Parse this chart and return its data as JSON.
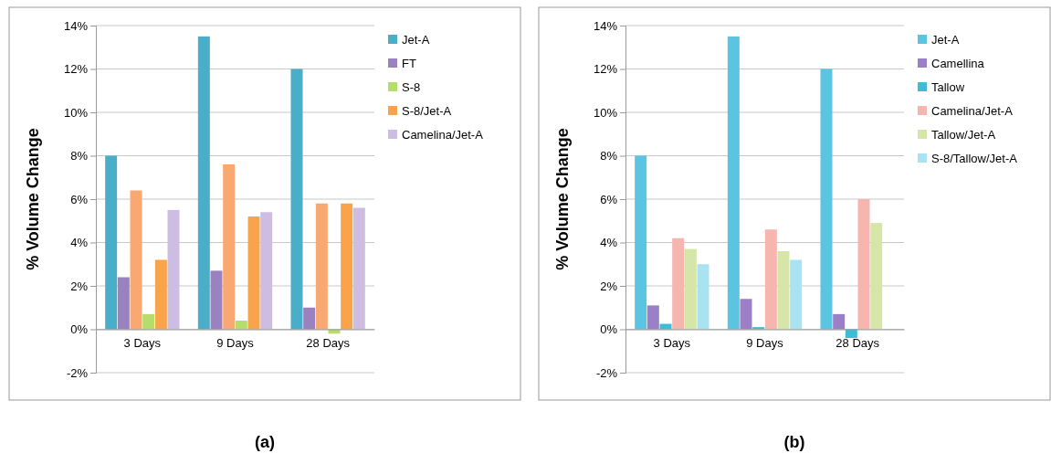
{
  "chart_data": [
    {
      "type": "bar",
      "ylabel": "% Volume Change",
      "annotations": [
        "(a)"
      ],
      "categories": [
        "3 Days",
        "9 Days",
        "28 Days"
      ],
      "ylim": [
        -2,
        14
      ],
      "yticks": [
        {
          "value": -2,
          "label": "-2%"
        },
        {
          "value": 0,
          "label": "0%"
        },
        {
          "value": 2,
          "label": "2%"
        },
        {
          "value": 4,
          "label": "4%"
        },
        {
          "value": 6,
          "label": "6%"
        },
        {
          "value": 8,
          "label": "8%"
        },
        {
          "value": 10,
          "label": "10%"
        },
        {
          "value": 12,
          "label": "12%"
        },
        {
          "value": 14,
          "label": "14%"
        }
      ],
      "grid": "y",
      "legend": "right",
      "series": [
        {
          "name": "Jet-A",
          "color": "#4aaec9",
          "values": [
            8.0,
            13.5,
            12.0
          ]
        },
        {
          "name": "FT",
          "color": "#9a82c0",
          "values": [
            2.4,
            2.7,
            1.0
          ]
        },
        {
          "color": "#f8a870",
          "values": [
            6.4,
            7.6,
            5.8
          ]
        },
        {
          "name": "S-8",
          "color": "#b5dd6b",
          "values": [
            0.7,
            0.4,
            -0.2
          ]
        },
        {
          "name": "S-8/Jet-A",
          "color": "#f9a34a",
          "values": [
            3.2,
            5.2,
            5.8
          ]
        },
        {
          "name": "Camelina/Jet-A",
          "color": "#cdbde3",
          "values": [
            5.5,
            5.4,
            5.6
          ]
        }
      ]
    },
    {
      "type": "bar",
      "ylabel": "% Volume Change",
      "annotations": [
        "(b)"
      ],
      "categories": [
        "3 Days",
        "9 Days",
        "28 Days"
      ],
      "ylim": [
        -2,
        14
      ],
      "yticks": [
        {
          "value": -2,
          "label": "-2%"
        },
        {
          "value": 0,
          "label": "0%"
        },
        {
          "value": 2,
          "label": "2%"
        },
        {
          "value": 4,
          "label": "4%"
        },
        {
          "value": 6,
          "label": "6%"
        },
        {
          "value": 8,
          "label": "8%"
        },
        {
          "value": 10,
          "label": "10%"
        },
        {
          "value": 12,
          "label": "12%"
        },
        {
          "value": 14,
          "label": "14%"
        }
      ],
      "grid": "y",
      "legend": "right",
      "series": [
        {
          "name": "Jet-A",
          "color": "#5bc4e0",
          "values": [
            8.0,
            13.5,
            12.0
          ]
        },
        {
          "name": "Camellina",
          "color": "#9b7fc7",
          "values": [
            1.1,
            1.4,
            0.7
          ]
        },
        {
          "name": "Tallow",
          "color": "#3cbdd6",
          "values": [
            0.25,
            0.1,
            -0.4
          ]
        },
        {
          "name": "Camelina/Jet-A",
          "color": "#f7b5b0",
          "values": [
            4.2,
            4.6,
            6.0
          ]
        },
        {
          "name": "Tallow/Jet-A",
          "color": "#d5e6a8",
          "values": [
            3.7,
            3.6,
            4.9
          ]
        },
        {
          "name": "S-8/Tallow/Jet-A",
          "color": "#a9e3f2",
          "values": [
            3.0,
            3.2,
            null
          ]
        }
      ]
    }
  ]
}
